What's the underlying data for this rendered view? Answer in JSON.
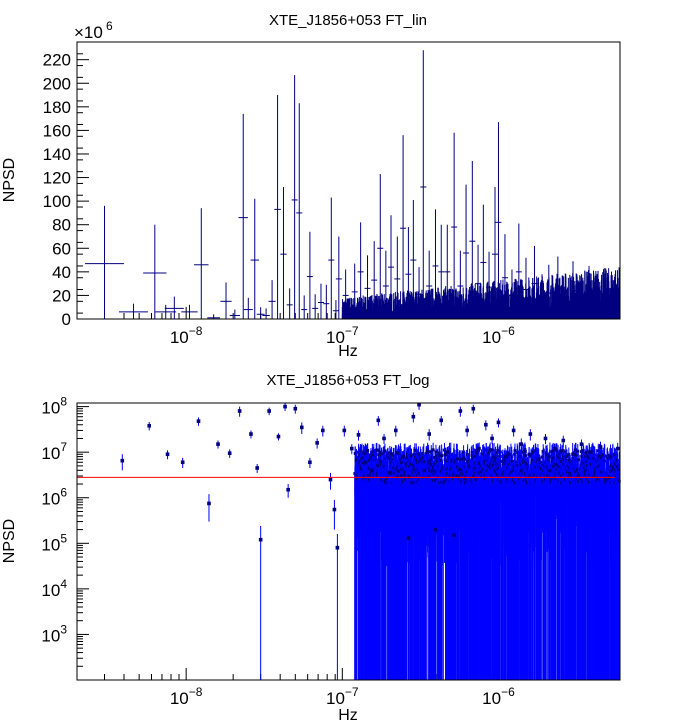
{
  "chart_data": [
    {
      "type": "line",
      "title": "XTE_J1856+053 FT_lin",
      "xlabel": "Hz",
      "ylabel": "NPSD",
      "xscale": "log",
      "xlim": [
        2e-09,
        6e-06
      ],
      "ylim": [
        0,
        235
      ],
      "y_multiplier_label": "×10",
      "y_multiplier_exp": "6",
      "xticks": [
        {
          "value": 1e-08,
          "mant": "10",
          "exp": "−8"
        },
        {
          "value": 1e-07,
          "mant": "10",
          "exp": "−7"
        },
        {
          "value": 1e-06,
          "mant": "10",
          "exp": "−6"
        }
      ],
      "yticks": [
        0,
        20,
        40,
        60,
        80,
        100,
        120,
        140,
        160,
        180,
        200,
        220
      ],
      "line_color": "#000080",
      "points": [
        [
          3e-09,
          47,
          96
        ],
        [
          4.6e-09,
          6,
          13
        ],
        [
          6.3e-09,
          39,
          80
        ],
        [
          7.4e-09,
          6,
          12
        ],
        [
          8.4e-09,
          9,
          19
        ],
        [
          1.05e-08,
          6,
          12
        ],
        [
          1.25e-08,
          46,
          94
        ],
        [
          1.5e-08,
          1,
          4
        ],
        [
          1.8e-08,
          15,
          31
        ],
        [
          2.05e-08,
          3,
          8
        ],
        [
          2.32e-08,
          86,
          174
        ],
        [
          2.5e-08,
          8,
          18
        ],
        [
          2.75e-08,
          50,
          102
        ],
        [
          3e-08,
          4,
          10
        ],
        [
          3.25e-08,
          3,
          9
        ],
        [
          3.55e-08,
          15,
          33
        ],
        [
          3.85e-08,
          93,
          190
        ],
        [
          4.2e-08,
          55,
          112
        ],
        [
          4.6e-08,
          12,
          26
        ],
        [
          4.95e-08,
          101,
          207
        ],
        [
          5.3e-08,
          90,
          183
        ],
        [
          5.7e-08,
          8,
          20
        ],
        [
          6.2e-08,
          36,
          74
        ],
        [
          6.7e-08,
          9,
          21
        ],
        [
          7.3e-08,
          14,
          30
        ],
        [
          7.9e-08,
          13,
          29
        ],
        [
          8.5e-08,
          50,
          103
        ],
        [
          9.1e-08,
          7,
          16
        ],
        [
          9.5e-08,
          34,
          70
        ],
        [
          1.05e-07,
          20,
          42
        ],
        [
          1.12e-07,
          8,
          18
        ],
        [
          1.2e-07,
          23,
          47
        ],
        [
          1.31e-07,
          40,
          82
        ],
        [
          1.45e-07,
          26,
          54
        ],
        [
          1.6e-07,
          33,
          66
        ],
        [
          1.75e-07,
          60,
          123
        ],
        [
          1.9e-07,
          28,
          58
        ],
        [
          2.05e-07,
          44,
          88
        ],
        [
          2.25e-07,
          34,
          70
        ],
        [
          2.45e-07,
          77,
          156
        ],
        [
          2.65e-07,
          38,
          78
        ],
        [
          2.85e-07,
          50,
          101
        ],
        [
          3.1e-07,
          21,
          44
        ],
        [
          3.3e-07,
          112,
          228
        ],
        [
          3.6e-07,
          28,
          58
        ],
        [
          3.95e-07,
          45,
          93
        ],
        [
          4.3e-07,
          40,
          80
        ],
        [
          4.7e-07,
          40,
          80
        ],
        [
          5.2e-07,
          78,
          158
        ],
        [
          5.7e-07,
          28,
          58
        ],
        [
          6.2e-07,
          56,
          114
        ],
        [
          6.8e-07,
          66,
          134
        ],
        [
          7.4e-07,
          30,
          63
        ],
        [
          8e-07,
          48,
          97
        ],
        [
          8.7e-07,
          27,
          57
        ],
        [
          9.5e-07,
          55,
          112
        ],
        [
          1e-06,
          82,
          167
        ],
        [
          1.1e-06,
          35,
          72
        ],
        [
          1.22e-06,
          20,
          42
        ],
        [
          1.35e-06,
          40,
          81
        ],
        [
          1.5e-06,
          25,
          52
        ],
        [
          1.7e-06,
          30,
          62
        ],
        [
          1.9e-06,
          18,
          38
        ],
        [
          2.1e-06,
          22,
          46
        ],
        [
          2.4e-06,
          26,
          53
        ],
        [
          2.7e-06,
          15,
          32
        ],
        [
          3e-06,
          24,
          49
        ],
        [
          3.4e-06,
          18,
          38
        ],
        [
          3.8e-06,
          22,
          45
        ],
        [
          4.3e-06,
          15,
          32
        ],
        [
          4.9e-06,
          20,
          41
        ],
        [
          5.5e-06,
          16,
          33
        ]
      ],
      "noise": {
        "x_from": 1e-07,
        "x_to": 6e-06,
        "level_near": 12,
        "level_far": 30
      }
    },
    {
      "type": "scatter",
      "title": "XTE_J1856+053 FT_log",
      "xlabel": "Hz",
      "ylabel": "NPSD",
      "xscale": "log",
      "yscale": "log",
      "xlim": [
        2e-09,
        6e-06
      ],
      "ylim": [
        100,
        120000000.0
      ],
      "xticks": [
        {
          "value": 1e-08,
          "mant": "10",
          "exp": "−8"
        },
        {
          "value": 1e-07,
          "mant": "10",
          "exp": "−7"
        },
        {
          "value": 1e-06,
          "mant": "10",
          "exp": "−6"
        }
      ],
      "yticks": [
        {
          "value": 1000.0,
          "mant": "10",
          "exp": "3"
        },
        {
          "value": 10000.0,
          "mant": "10",
          "exp": "4"
        },
        {
          "value": 100000.0,
          "mant": "10",
          "exp": "5"
        },
        {
          "value": 1000000.0,
          "mant": "10",
          "exp": "6"
        },
        {
          "value": 10000000.0,
          "mant": "10",
          "exp": "7"
        },
        {
          "value": 100000000.0,
          "mant": "10",
          "exp": "8"
        }
      ],
      "marker_color": "#0000ff",
      "point_color": "#000080",
      "reference_line": {
        "y": 2800000.0,
        "color": "#ff0000"
      },
      "points": [
        [
          3.9e-09,
          6500000.0,
          4000000.0
        ],
        [
          5.8e-09,
          38000000.0,
          30000000.0
        ],
        [
          7.6e-09,
          9000000.0,
          7000000.0
        ],
        [
          9.5e-09,
          6000000.0,
          4500000.0
        ],
        [
          1.2e-08,
          48000000.0,
          38000000.0
        ],
        [
          1.4e-08,
          750000.0,
          300000.0
        ],
        [
          1.6e-08,
          15000000.0,
          12000000.0
        ],
        [
          1.9e-08,
          9500000.0,
          7500000.0
        ],
        [
          2.2e-08,
          80000000.0,
          60000000.0
        ],
        [
          2.6e-08,
          25000000.0,
          20000000.0
        ],
        [
          2.85e-08,
          4500000.0,
          3500000.0
        ],
        [
          3e-08,
          120000.0,
          100
        ],
        [
          3.4e-08,
          80000000.0,
          65000000.0
        ],
        [
          3.9e-08,
          22000000.0,
          18000000.0
        ],
        [
          4.3e-08,
          100000000.0,
          80000000.0
        ],
        [
          4.5e-08,
          1500000.0,
          1000000.0
        ],
        [
          5e-08,
          90000000.0,
          70000000.0
        ],
        [
          5.5e-08,
          35000000.0,
          25000000.0
        ],
        [
          6.2e-08,
          6000000.0,
          4500000.0
        ],
        [
          6.9e-08,
          16000000.0,
          12000000.0
        ],
        [
          7.5e-08,
          30000000.0,
          22000000.0
        ],
        [
          8.4e-08,
          2500000.0,
          1500000.0
        ],
        [
          8.9e-08,
          550000.0,
          200000.0
        ],
        [
          9.3e-08,
          80000.0,
          100
        ],
        [
          1.03e-07,
          30000000.0,
          22000000.0
        ],
        [
          1.15e-07,
          12000000.0,
          9000000.0
        ],
        [
          1.27e-07,
          24000000.0,
          18000000.0
        ],
        [
          1.4e-07,
          6000000.0,
          3500000.0
        ],
        [
          1.55e-07,
          4000000.0,
          2500000.0
        ],
        [
          1.7e-07,
          50000000.0,
          38000000.0
        ],
        [
          1.85e-07,
          20000000.0,
          15000000.0
        ],
        [
          2e-07,
          3500000.0,
          2000000.0
        ],
        [
          2.2e-07,
          30000000.0,
          22000000.0
        ],
        [
          2.45e-07,
          8000000.0,
          5500000.0
        ],
        [
          2.65e-07,
          130000.0,
          100
        ],
        [
          2.85e-07,
          60000000.0,
          45000000.0
        ],
        [
          3.1e-07,
          110000000.0,
          85000000.0
        ],
        [
          3.35e-07,
          4000000.0,
          2500000.0
        ],
        [
          3.6e-07,
          25000000.0,
          18000000.0
        ],
        [
          3.95e-07,
          200000.0,
          100
        ],
        [
          4.3e-07,
          50000000.0,
          38000000.0
        ],
        [
          4.7e-07,
          10000000.0,
          7000000.0
        ],
        [
          5.2e-07,
          150000.0,
          100
        ],
        [
          5.7e-07,
          80000000.0,
          60000000.0
        ],
        [
          6.3e-07,
          30000000.0,
          22000000.0
        ],
        [
          6.9e-07,
          90000000.0,
          70000000.0
        ],
        [
          7.5e-07,
          12000000.0,
          8500000.0
        ],
        [
          8.3e-07,
          40000000.0,
          30000000.0
        ],
        [
          9.1e-07,
          20000000.0,
          15000000.0
        ],
        [
          1e-06,
          45000000.0,
          35000000.0
        ],
        [
          1.12e-06,
          8000000.0,
          5000000.0
        ],
        [
          1.25e-06,
          30000000.0,
          22000000.0
        ],
        [
          1.4e-06,
          15000000.0,
          10000000.0
        ],
        [
          1.6e-06,
          25000000.0,
          18000000.0
        ],
        [
          1.8e-06,
          7000000.0,
          4500000.0
        ],
        [
          2e-06,
          20000000.0,
          15000000.0
        ],
        [
          2.3e-06,
          12000000.0,
          8500000.0
        ],
        [
          2.6e-06,
          18000000.0,
          13000000.0
        ],
        [
          3e-06,
          9000000.0,
          6000000.0
        ],
        [
          3.4e-06,
          15000000.0,
          11000000.0
        ],
        [
          3.9e-06,
          10000000.0,
          7000000.0
        ],
        [
          4.5e-06,
          13000000.0,
          9000000.0
        ],
        [
          5.2e-06,
          8000000.0,
          5500000.0
        ],
        [
          5.8e-06,
          12000000.0,
          8000000.0
        ]
      ],
      "noise": {
        "x_from": 1.2e-07,
        "x_to": 6e-06,
        "top": 14000000.0,
        "mid": 3000000.0
      }
    }
  ]
}
